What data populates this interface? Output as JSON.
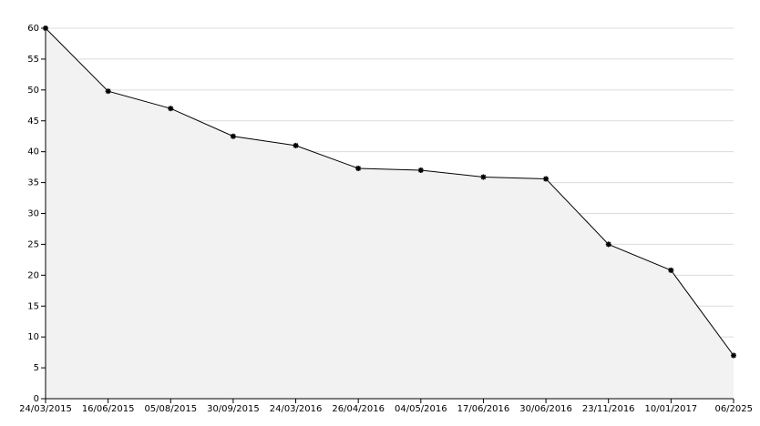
{
  "chart_data": {
    "type": "area",
    "categories": [
      "24/03/2015",
      "16/06/2015",
      "05/08/2015",
      "30/09/2015",
      "24/03/2016",
      "26/04/2016",
      "04/05/2016",
      "17/06/2016",
      "30/06/2016",
      "23/11/2016",
      "10/01/2017",
      "06/2025"
    ],
    "values": [
      60,
      49.8,
      47,
      42.5,
      41,
      37.3,
      37,
      35.9,
      35.6,
      25,
      20.8,
      7
    ],
    "color": "#000000",
    "fill": "#f2f2f2",
    "ylim": [
      0,
      60
    ],
    "yticks": [
      0,
      5,
      10,
      15,
      20,
      25,
      30,
      35,
      40,
      45,
      50,
      55,
      60
    ],
    "grid": true
  }
}
